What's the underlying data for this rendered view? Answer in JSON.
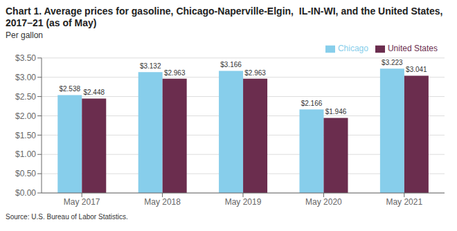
{
  "chart_data": {
    "type": "bar",
    "title": "Chart 1. Average prices for gasoline, Chicago-Naperville-Elgin,  IL-IN-WI, and the United States, 2017–21 (as of May)",
    "ylabel": "Per gallon",
    "source": "Source: U.S. Bureau of Labor Statistics.",
    "categories": [
      "May 2017",
      "May 2018",
      "May 2019",
      "May 2020",
      "May 2021"
    ],
    "series": [
      {
        "name": "Chicago",
        "color": "#87CEEB",
        "values": [
          2.538,
          3.132,
          3.166,
          2.166,
          3.223
        ],
        "value_labels": [
          "$2.538",
          "$3.132",
          "$3.166",
          "$2.166",
          "$3.223"
        ]
      },
      {
        "name": "United States",
        "color": "#6B2D4E",
        "values": [
          2.448,
          2.963,
          2.963,
          1.946,
          3.041
        ],
        "value_labels": [
          "$2.448",
          "$2.963",
          "$2.963",
          "$1.946",
          "$3.041"
        ]
      }
    ],
    "ylim": [
      0,
      3.5
    ],
    "yticks": [
      {
        "value": 0.0,
        "label": "$0.00"
      },
      {
        "value": 0.5,
        "label": "$0.50"
      },
      {
        "value": 1.0,
        "label": "$1.00"
      },
      {
        "value": 1.5,
        "label": "$1.50"
      },
      {
        "value": 2.0,
        "label": "$2.00"
      },
      {
        "value": 2.5,
        "label": "$2.50"
      },
      {
        "value": 3.0,
        "label": "$3.00"
      },
      {
        "value": 3.5,
        "label": "$3.50"
      }
    ],
    "grid": true,
    "legend": "upper right",
    "data_labels": true
  }
}
